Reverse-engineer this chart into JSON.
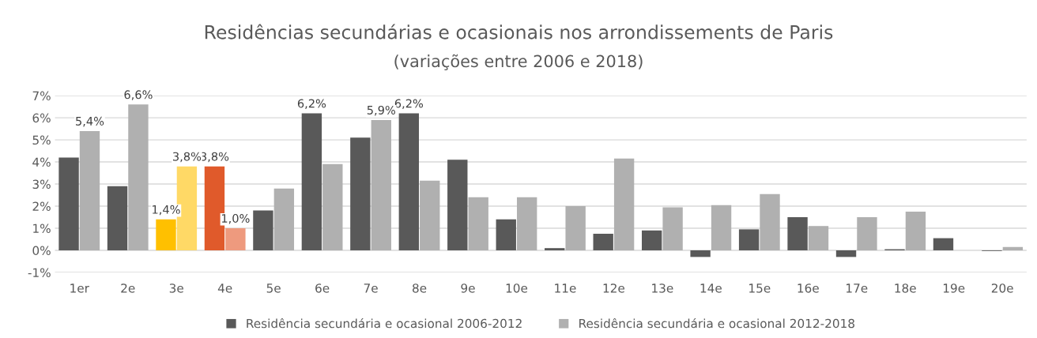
{
  "chart_data": {
    "type": "bar",
    "title": "Residências secundárias e ocasionais nos arrondissements de Paris",
    "subtitle": "(variações entre 2006 e 2018)",
    "categories": [
      "1er",
      "2e",
      "3e",
      "4e",
      "5e",
      "6e",
      "7e",
      "8e",
      "9e",
      "10e",
      "11e",
      "12e",
      "13e",
      "14e",
      "15e",
      "16e",
      "17e",
      "18e",
      "19e",
      "20e"
    ],
    "series": [
      {
        "name": "Residência secundária e ocasional 2006-2012",
        "color": "#595959",
        "colors": [
          "#595959",
          "#595959",
          "#ffc000",
          "#e05a2b",
          "#595959",
          "#595959",
          "#595959",
          "#595959",
          "#595959",
          "#595959",
          "#595959",
          "#595959",
          "#595959",
          "#595959",
          "#595959",
          "#595959",
          "#595959",
          "#595959",
          "#595959",
          "#595959"
        ],
        "values": [
          4.2,
          2.9,
          1.4,
          3.8,
          1.8,
          6.2,
          5.1,
          6.2,
          4.1,
          1.4,
          0.1,
          0.75,
          0.9,
          -0.3,
          0.95,
          1.5,
          -0.3,
          0.05,
          0.55,
          -0.03
        ],
        "value_labels": [
          null,
          null,
          "1,4%",
          "3,8%",
          null,
          "6,2%",
          null,
          "6,2%",
          null,
          null,
          null,
          null,
          null,
          null,
          null,
          null,
          null,
          null,
          null,
          null
        ]
      },
      {
        "name": "Residência secundária e ocasional 2012-2018",
        "color": "#b0b0b0",
        "colors": [
          "#b0b0b0",
          "#b0b0b0",
          "#ffd966",
          "#ee9a7e",
          "#b0b0b0",
          "#b0b0b0",
          "#b0b0b0",
          "#b0b0b0",
          "#b0b0b0",
          "#b0b0b0",
          "#b0b0b0",
          "#b0b0b0",
          "#b0b0b0",
          "#b0b0b0",
          "#b0b0b0",
          "#b0b0b0",
          "#b0b0b0",
          "#b0b0b0",
          "#b0b0b0",
          "#b0b0b0"
        ],
        "values": [
          5.4,
          6.6,
          3.8,
          1.0,
          2.8,
          3.9,
          5.9,
          3.15,
          2.4,
          2.4,
          2.0,
          4.15,
          1.95,
          2.05,
          2.55,
          1.1,
          1.5,
          1.75,
          null,
          0.15
        ],
        "value_labels": [
          "5,4%",
          "6,6%",
          "3,8%",
          "1,0%",
          null,
          null,
          "5,9%",
          null,
          null,
          null,
          null,
          null,
          null,
          null,
          null,
          null,
          null,
          null,
          null,
          null
        ]
      }
    ],
    "ylim": [
      -1,
      7
    ],
    "yticks": [
      {
        "value": -1,
        "label": "-1%"
      },
      {
        "value": 0,
        "label": "0%"
      },
      {
        "value": 1,
        "label": "1%"
      },
      {
        "value": 2,
        "label": "2%"
      },
      {
        "value": 3,
        "label": "3%"
      },
      {
        "value": 4,
        "label": "4%"
      },
      {
        "value": 5,
        "label": "5%"
      },
      {
        "value": 6,
        "label": "6%"
      },
      {
        "value": 7,
        "label": "7%"
      }
    ],
    "grid": "y",
    "legend": "bottom"
  }
}
